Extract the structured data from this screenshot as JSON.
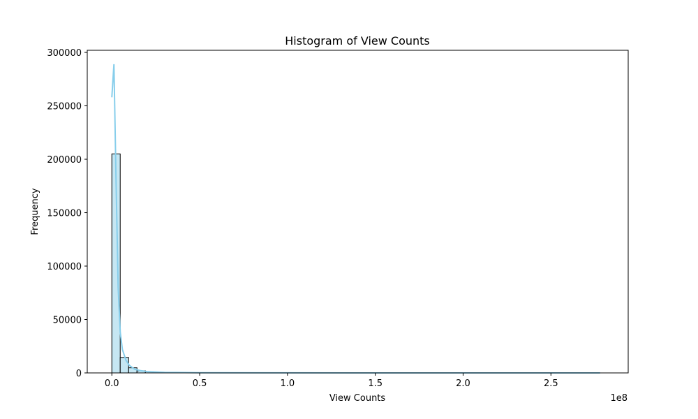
{
  "chart_data": {
    "type": "bar",
    "title": "Histogram of View Counts",
    "xlabel": "View Counts",
    "ylabel": "Frequency",
    "x_offset_text": "1e8",
    "xlim": [
      -0.14,
      2.94
    ],
    "ylim": [
      0,
      302000
    ],
    "x_ticks": [
      0.0,
      0.5,
      1.0,
      1.5,
      2.0,
      2.5
    ],
    "x_tick_labels": [
      "0.0",
      "0.5",
      "1.0",
      "1.5",
      "2.0",
      "2.5"
    ],
    "y_ticks": [
      0,
      50000,
      100000,
      150000,
      200000,
      250000,
      300000
    ],
    "y_tick_labels": [
      "0",
      "50000",
      "100000",
      "150000",
      "200000",
      "250000",
      "300000"
    ],
    "bin_width": 0.0477,
    "bin_start": 0.0,
    "values": [
      205000,
      14500,
      4800,
      2000,
      1000,
      600,
      400,
      250,
      180,
      120,
      90,
      70,
      55,
      45,
      35,
      30,
      25,
      20,
      18,
      15,
      12,
      10,
      9,
      8,
      7,
      6,
      5,
      5,
      4,
      4,
      3,
      3,
      3,
      2,
      2,
      2,
      2,
      1,
      1,
      1,
      1,
      1,
      1,
      1,
      1,
      1,
      1,
      1,
      1,
      1,
      1,
      1,
      1,
      1,
      1,
      1,
      1,
      1
    ],
    "kde": {
      "x": [
        0.0,
        0.012,
        0.024,
        0.036,
        0.048,
        0.06,
        0.08,
        0.1,
        0.13,
        0.16,
        0.2,
        0.3,
        0.5,
        1.0,
        1.5,
        2.0,
        2.5,
        2.78
      ],
      "y": [
        258000,
        289000,
        180000,
        80000,
        38000,
        22000,
        12000,
        7000,
        3500,
        2200,
        1200,
        500,
        200,
        60,
        20,
        10,
        5,
        3
      ]
    },
    "bar_color": "#c6e7f3",
    "bar_edge_color": "#000000",
    "kde_color": "#87ceeb",
    "grid": false
  }
}
